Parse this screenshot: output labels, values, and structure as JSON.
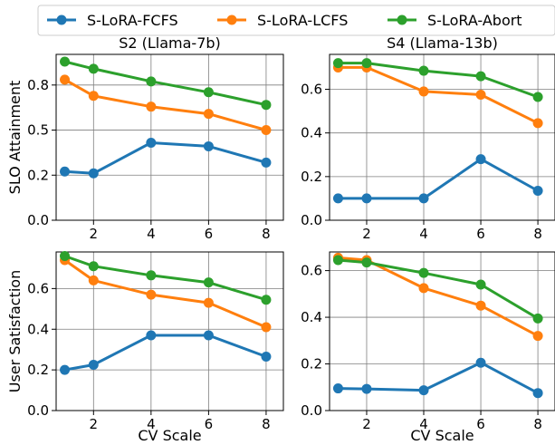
{
  "legend": {
    "entries": [
      {
        "name": "S-LoRA-FCFS",
        "color": "#1f77b4"
      },
      {
        "name": "S-LoRA-LCFS",
        "color": "#ff7f0e"
      },
      {
        "name": "S-LoRA-Abort",
        "color": "#2ca02c"
      }
    ],
    "placement": "top-center"
  },
  "chart_data": [
    {
      "type": "line",
      "title": "S2 (Llama-7b)",
      "xlabel": "",
      "ylabel": "SLO Attainment",
      "x": [
        1,
        2,
        4,
        6,
        8
      ],
      "xticks": [
        2,
        4,
        6,
        8
      ],
      "yticks": [
        0.0,
        0.25,
        0.5,
        0.75
      ],
      "ytick_labels": [
        "0.0",
        "0.2",
        "0.5",
        "0.8"
      ],
      "xlim": [
        0.7,
        8.6
      ],
      "ylim": [
        0.0,
        0.92
      ],
      "grid": true,
      "series": [
        {
          "name": "S-LoRA-FCFS",
          "color": "#1f77b4",
          "values": [
            0.27,
            0.26,
            0.43,
            0.41,
            0.32
          ]
        },
        {
          "name": "S-LoRA-LCFS",
          "color": "#ff7f0e",
          "values": [
            0.78,
            0.69,
            0.63,
            0.59,
            0.5
          ]
        },
        {
          "name": "S-LoRA-Abort",
          "color": "#2ca02c",
          "values": [
            0.88,
            0.84,
            0.77,
            0.71,
            0.64
          ]
        }
      ]
    },
    {
      "type": "line",
      "title": "S4 (Llama-13b)",
      "xlabel": "",
      "ylabel": "",
      "x": [
        1,
        2,
        4,
        6,
        8
      ],
      "xticks": [
        2,
        4,
        6,
        8
      ],
      "yticks": [
        0.0,
        0.2,
        0.4,
        0.6
      ],
      "ytick_labels": [
        "0.0",
        "0.2",
        "0.4",
        "0.6"
      ],
      "xlim": [
        0.7,
        8.6
      ],
      "ylim": [
        0.0,
        0.76
      ],
      "grid": true,
      "series": [
        {
          "name": "S-LoRA-FCFS",
          "color": "#1f77b4",
          "values": [
            0.1,
            0.1,
            0.1,
            0.28,
            0.135
          ]
        },
        {
          "name": "S-LoRA-LCFS",
          "color": "#ff7f0e",
          "values": [
            0.7,
            0.7,
            0.59,
            0.575,
            0.445
          ]
        },
        {
          "name": "S-LoRA-Abort",
          "color": "#2ca02c",
          "values": [
            0.72,
            0.72,
            0.685,
            0.66,
            0.565
          ]
        }
      ]
    },
    {
      "type": "line",
      "title": "",
      "xlabel": "CV Scale",
      "ylabel": "User Satisfaction",
      "x": [
        1,
        2,
        4,
        6,
        8
      ],
      "xticks": [
        2,
        4,
        6,
        8
      ],
      "yticks": [
        0.0,
        0.2,
        0.4,
        0.6
      ],
      "ytick_labels": [
        "0.0",
        "0.2",
        "0.4",
        "0.6"
      ],
      "xlim": [
        0.7,
        8.6
      ],
      "ylim": [
        0.0,
        0.78
      ],
      "grid": true,
      "series": [
        {
          "name": "S-LoRA-FCFS",
          "color": "#1f77b4",
          "values": [
            0.2,
            0.225,
            0.37,
            0.37,
            0.265
          ]
        },
        {
          "name": "S-LoRA-LCFS",
          "color": "#ff7f0e",
          "values": [
            0.74,
            0.64,
            0.57,
            0.53,
            0.41
          ]
        },
        {
          "name": "S-LoRA-Abort",
          "color": "#2ca02c",
          "values": [
            0.76,
            0.71,
            0.665,
            0.63,
            0.545
          ]
        }
      ]
    },
    {
      "type": "line",
      "title": "",
      "xlabel": "CV Scale",
      "ylabel": "",
      "x": [
        1,
        2,
        4,
        6,
        8
      ],
      "xticks": [
        2,
        4,
        6,
        8
      ],
      "yticks": [
        0.0,
        0.2,
        0.4,
        0.6
      ],
      "ytick_labels": [
        "0.0",
        "0.2",
        "0.4",
        "0.6"
      ],
      "xlim": [
        0.7,
        8.6
      ],
      "ylim": [
        0.0,
        0.68
      ],
      "grid": true,
      "series": [
        {
          "name": "S-LoRA-FCFS",
          "color": "#1f77b4",
          "values": [
            0.095,
            0.093,
            0.087,
            0.205,
            0.075
          ]
        },
        {
          "name": "S-LoRA-LCFS",
          "color": "#ff7f0e",
          "values": [
            0.655,
            0.645,
            0.525,
            0.45,
            0.32
          ]
        },
        {
          "name": "S-LoRA-Abort",
          "color": "#2ca02c",
          "values": [
            0.645,
            0.635,
            0.59,
            0.54,
            0.395
          ]
        }
      ]
    }
  ]
}
